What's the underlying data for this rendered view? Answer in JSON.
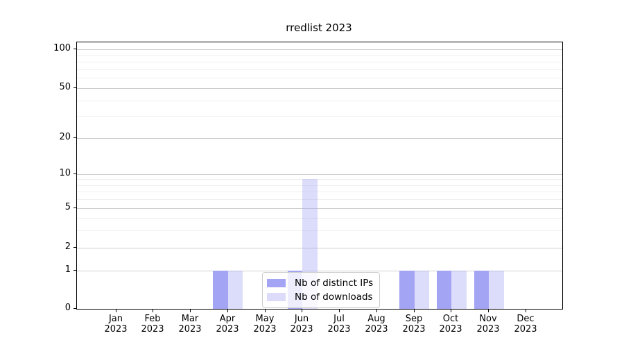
{
  "title": "rredlist 2023",
  "chart_data": {
    "type": "bar",
    "title": "rredlist 2023",
    "categories": [
      "Jan 2023",
      "Feb 2023",
      "Mar 2023",
      "Apr 2023",
      "May 2023",
      "Jun 2023",
      "Jul 2023",
      "Aug 2023",
      "Sep 2023",
      "Oct 2023",
      "Nov 2023",
      "Dec 2023"
    ],
    "series": [
      {
        "name": "Nb of distinct IPs",
        "color": "#a4a4f4",
        "bar_fill": "#a4a4f4",
        "values": [
          0,
          0,
          0,
          1,
          0,
          1,
          0,
          0,
          1,
          1,
          1,
          0
        ]
      },
      {
        "name": "Nb of downloads",
        "color": "#dcdcfa",
        "bar_fill": "rgba(164,164,244,0.38)",
        "values": [
          0,
          0,
          0,
          1,
          0,
          9,
          0,
          0,
          1,
          1,
          1,
          0
        ]
      }
    ],
    "xlabel": "",
    "ylabel": "",
    "y_scale": "log-with-zero",
    "y_major_ticks": [
      0,
      1,
      2,
      5,
      10,
      20,
      50,
      100
    ],
    "y_minor_ticks": [
      3,
      4,
      6,
      7,
      8,
      9,
      30,
      40,
      60,
      70,
      80,
      90
    ],
    "ylim": [
      0,
      113
    ],
    "grid": "horizontal",
    "legend_position": "lower center"
  },
  "colors": {
    "background": "#ffffff",
    "spine": "#000000",
    "major_grid": "#cdcdcd",
    "minor_grid": "#efefef",
    "text": "#000000",
    "legend_border": "#cccccc"
  }
}
